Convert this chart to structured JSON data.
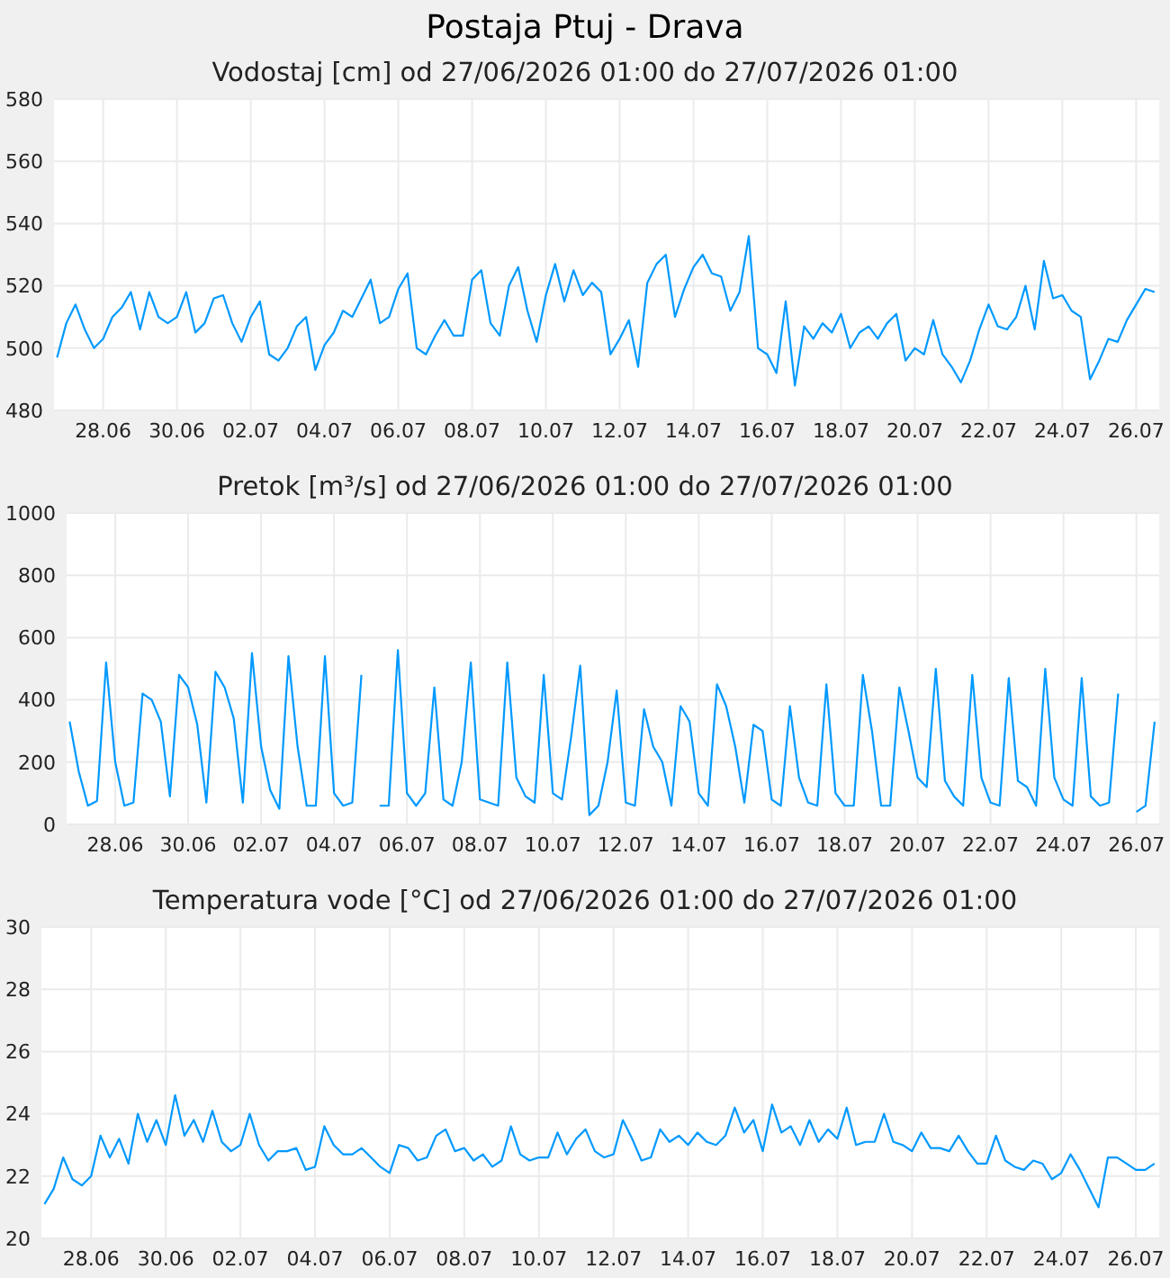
{
  "chart_data": [
    {
      "type": "line",
      "title": "Postaja Ptuj - Drava",
      "subtitle": "Vodostaj [cm] od 27/06/2026 01:00 do 27/07/2026 01:00",
      "grid": true,
      "x": [
        "2026-06-26T18:00",
        "2026-06-27T00:00",
        "2026-06-27T06:00",
        "2026-06-27T12:00",
        "2026-06-27T18:00",
        "2026-06-28T00:00",
        "2026-06-28T06:00",
        "2026-06-28T12:00",
        "2026-06-28T18:00",
        "2026-06-29T00:00",
        "2026-06-29T06:00",
        "2026-06-29T12:00",
        "2026-06-29T18:00",
        "2026-06-30T00:00",
        "2026-06-30T06:00",
        "2026-06-30T12:00",
        "2026-06-30T18:00",
        "2026-07-01T00:00",
        "2026-07-01T06:00",
        "2026-07-01T12:00",
        "2026-07-01T18:00",
        "2026-07-02T00:00",
        "2026-07-02T06:00",
        "2026-07-02T12:00",
        "2026-07-02T18:00",
        "2026-07-03T00:00",
        "2026-07-03T06:00",
        "2026-07-03T12:00",
        "2026-07-03T18:00",
        "2026-07-04T00:00",
        "2026-07-04T06:00",
        "2026-07-04T12:00",
        "2026-07-04T18:00",
        "2026-07-05T00:00",
        "2026-07-05T06:00",
        "2026-07-05T12:00",
        "2026-07-05T18:00",
        "2026-07-06T00:00",
        "2026-07-06T06:00",
        "2026-07-06T12:00",
        "2026-07-06T18:00",
        "2026-07-07T00:00",
        "2026-07-07T06:00",
        "2026-07-07T12:00",
        "2026-07-07T18:00",
        "2026-07-08T00:00",
        "2026-07-08T06:00",
        "2026-07-08T12:00",
        "2026-07-08T18:00",
        "2026-07-09T00:00",
        "2026-07-09T06:00",
        "2026-07-09T12:00",
        "2026-07-09T18:00",
        "2026-07-10T00:00",
        "2026-07-10T06:00",
        "2026-07-10T12:00",
        "2026-07-10T18:00",
        "2026-07-11T00:00",
        "2026-07-11T06:00",
        "2026-07-11T12:00",
        "2026-07-11T18:00",
        "2026-07-12T00:00",
        "2026-07-12T06:00",
        "2026-07-12T12:00",
        "2026-07-12T18:00",
        "2026-07-13T00:00",
        "2026-07-13T06:00",
        "2026-07-13T12:00",
        "2026-07-13T18:00",
        "2026-07-14T00:00",
        "2026-07-14T06:00",
        "2026-07-14T12:00",
        "2026-07-14T18:00",
        "2026-07-15T00:00",
        "2026-07-15T06:00",
        "2026-07-15T12:00",
        "2026-07-15T18:00",
        "2026-07-16T00:00",
        "2026-07-16T06:00",
        "2026-07-16T12:00",
        "2026-07-16T18:00",
        "2026-07-17T00:00",
        "2026-07-17T06:00",
        "2026-07-17T12:00",
        "2026-07-17T18:00",
        "2026-07-18T00:00",
        "2026-07-18T06:00",
        "2026-07-18T12:00",
        "2026-07-18T18:00",
        "2026-07-19T00:00",
        "2026-07-19T06:00",
        "2026-07-19T12:00",
        "2026-07-19T18:00",
        "2026-07-20T00:00",
        "2026-07-20T06:00",
        "2026-07-20T12:00",
        "2026-07-20T18:00",
        "2026-07-21T00:00",
        "2026-07-21T06:00",
        "2026-07-21T12:00",
        "2026-07-21T18:00",
        "2026-07-22T00:00",
        "2026-07-22T06:00",
        "2026-07-22T12:00",
        "2026-07-22T18:00",
        "2026-07-23T00:00",
        "2026-07-23T06:00",
        "2026-07-23T12:00",
        "2026-07-23T18:00",
        "2026-07-24T00:00",
        "2026-07-24T06:00",
        "2026-07-24T12:00",
        "2026-07-24T18:00",
        "2026-07-25T00:00",
        "2026-07-25T06:00",
        "2026-07-25T12:00",
        "2026-07-25T18:00",
        "2026-07-26T00:00",
        "2026-07-26T06:00",
        "2026-07-26T12:00"
      ],
      "series": [
        {
          "color": "#0099ff",
          "values": [
            497,
            508,
            514,
            506,
            500,
            503,
            510,
            513,
            518,
            506,
            518,
            510,
            508,
            510,
            518,
            505,
            508,
            516,
            517,
            508,
            502,
            510,
            515,
            498,
            496,
            500,
            507,
            510,
            493,
            501,
            505,
            512,
            510,
            516,
            522,
            508,
            510,
            519,
            524,
            500,
            498,
            504,
            509,
            504,
            504,
            522,
            525,
            508,
            504,
            520,
            526,
            512,
            502,
            517,
            527,
            515,
            525,
            517,
            521,
            518,
            498,
            503,
            509,
            494,
            521,
            527,
            530,
            510,
            519,
            526,
            530,
            524,
            523,
            512,
            518,
            536,
            500,
            498,
            492,
            515,
            488,
            507,
            503,
            508,
            505,
            511,
            500,
            505,
            507,
            503,
            508,
            511,
            496,
            500,
            498,
            509,
            498,
            494,
            489,
            496,
            506,
            514,
            507,
            506,
            510,
            520,
            506,
            528,
            516,
            517,
            512,
            510,
            490,
            496,
            503,
            502,
            509,
            514,
            519,
            518
          ]
        }
      ],
      "xlim": [
        "2026-06-26T16:00",
        "2026-07-26T15:00"
      ],
      "ylim": [
        480,
        580
      ],
      "yticks": [
        480,
        500,
        520,
        540,
        560,
        580
      ],
      "xticks": [
        {
          "value": "2026-06-28",
          "label": "28.06"
        },
        {
          "value": "2026-06-30",
          "label": "30.06"
        },
        {
          "value": "2026-07-02",
          "label": "02.07"
        },
        {
          "value": "2026-07-04",
          "label": "04.07"
        },
        {
          "value": "2026-07-06",
          "label": "06.07"
        },
        {
          "value": "2026-07-08",
          "label": "08.07"
        },
        {
          "value": "2026-07-10",
          "label": "10.07"
        },
        {
          "value": "2026-07-12",
          "label": "12.07"
        },
        {
          "value": "2026-07-14",
          "label": "14.07"
        },
        {
          "value": "2026-07-16",
          "label": "16.07"
        },
        {
          "value": "2026-07-18",
          "label": "18.07"
        },
        {
          "value": "2026-07-20",
          "label": "20.07"
        },
        {
          "value": "2026-07-22",
          "label": "22.07"
        },
        {
          "value": "2026-07-24",
          "label": "24.07"
        },
        {
          "value": "2026-07-26",
          "label": "26.07"
        }
      ]
    },
    {
      "type": "line",
      "title": "Pretok [m³/s] od 27/06/2026 01:00 do 27/07/2026 01:00",
      "grid": true,
      "x": [
        "2026-06-26T18:00",
        "2026-06-27T00:00",
        "2026-06-27T06:00",
        "2026-06-27T12:00",
        "2026-06-27T18:00",
        "2026-06-28T00:00",
        "2026-06-28T06:00",
        "2026-06-28T12:00",
        "2026-06-28T18:00",
        "2026-06-29T00:00",
        "2026-06-29T06:00",
        "2026-06-29T12:00",
        "2026-06-29T18:00",
        "2026-06-30T00:00",
        "2026-06-30T06:00",
        "2026-06-30T12:00",
        "2026-06-30T18:00",
        "2026-07-01T00:00",
        "2026-07-01T06:00",
        "2026-07-01T12:00",
        "2026-07-01T18:00",
        "2026-07-02T00:00",
        "2026-07-02T06:00",
        "2026-07-02T12:00",
        "2026-07-02T18:00",
        "2026-07-03T00:00",
        "2026-07-03T06:00",
        "2026-07-03T12:00",
        "2026-07-03T18:00",
        "2026-07-04T00:00",
        "2026-07-04T06:00",
        "2026-07-04T12:00",
        "2026-07-04T18:00",
        "2026-07-05T00:00",
        "2026-07-05T06:00",
        "2026-07-05T12:00",
        "2026-07-05T18:00",
        "2026-07-06T00:00",
        "2026-07-06T06:00",
        "2026-07-06T12:00",
        "2026-07-06T18:00",
        "2026-07-07T00:00",
        "2026-07-07T06:00",
        "2026-07-07T12:00",
        "2026-07-07T18:00",
        "2026-07-08T00:00",
        "2026-07-08T06:00",
        "2026-07-08T12:00",
        "2026-07-08T18:00",
        "2026-07-09T00:00",
        "2026-07-09T06:00",
        "2026-07-09T12:00",
        "2026-07-09T18:00",
        "2026-07-10T00:00",
        "2026-07-10T06:00",
        "2026-07-10T12:00",
        "2026-07-10T18:00",
        "2026-07-11T00:00",
        "2026-07-11T06:00",
        "2026-07-11T12:00",
        "2026-07-11T18:00",
        "2026-07-12T00:00",
        "2026-07-12T06:00",
        "2026-07-12T12:00",
        "2026-07-12T18:00",
        "2026-07-13T00:00",
        "2026-07-13T06:00",
        "2026-07-13T12:00",
        "2026-07-13T18:00",
        "2026-07-14T00:00",
        "2026-07-14T06:00",
        "2026-07-14T12:00",
        "2026-07-14T18:00",
        "2026-07-15T00:00",
        "2026-07-15T06:00",
        "2026-07-15T12:00",
        "2026-07-15T18:00",
        "2026-07-16T00:00",
        "2026-07-16T06:00",
        "2026-07-16T12:00",
        "2026-07-16T18:00",
        "2026-07-17T00:00",
        "2026-07-17T06:00",
        "2026-07-17T12:00",
        "2026-07-17T18:00",
        "2026-07-18T00:00",
        "2026-07-18T06:00",
        "2026-07-18T12:00",
        "2026-07-18T18:00",
        "2026-07-19T00:00",
        "2026-07-19T06:00",
        "2026-07-19T12:00",
        "2026-07-19T18:00",
        "2026-07-20T00:00",
        "2026-07-20T06:00",
        "2026-07-20T12:00",
        "2026-07-20T18:00",
        "2026-07-21T00:00",
        "2026-07-21T06:00",
        "2026-07-21T12:00",
        "2026-07-21T18:00",
        "2026-07-22T00:00",
        "2026-07-22T06:00",
        "2026-07-22T12:00",
        "2026-07-22T18:00",
        "2026-07-23T00:00",
        "2026-07-23T06:00",
        "2026-07-23T12:00",
        "2026-07-23T18:00",
        "2026-07-24T00:00",
        "2026-07-24T06:00",
        "2026-07-24T12:00",
        "2026-07-24T18:00",
        "2026-07-25T00:00",
        "2026-07-25T06:00",
        "2026-07-25T12:00",
        "2026-07-25T18:00",
        "2026-07-26T00:00",
        "2026-07-26T06:00",
        "2026-07-26T12:00"
      ],
      "series": [
        {
          "color": "#0099ff",
          "values": [
            330,
            170,
            60,
            75,
            520,
            200,
            60,
            70,
            420,
            400,
            330,
            90,
            480,
            440,
            320,
            70,
            490,
            440,
            340,
            70,
            550,
            250,
            110,
            50,
            540,
            250,
            60,
            60,
            540,
            100,
            60,
            70,
            480,
            null,
            60,
            60,
            560,
            100,
            60,
            100,
            440,
            80,
            60,
            200,
            520,
            80,
            70,
            60,
            520,
            150,
            90,
            70,
            480,
            100,
            80,
            280,
            510,
            30,
            60,
            200,
            430,
            70,
            60,
            370,
            250,
            200,
            60,
            380,
            330,
            100,
            60,
            450,
            380,
            250,
            70,
            320,
            300,
            80,
            60,
            380,
            150,
            70,
            60,
            450,
            100,
            60,
            60,
            480,
            300,
            60,
            60,
            440,
            300,
            150,
            120,
            500,
            140,
            90,
            60,
            480,
            150,
            70,
            60,
            470,
            140,
            120,
            60,
            500,
            150,
            80,
            60,
            470,
            90,
            60,
            70,
            420,
            null,
            40,
            60,
            330
          ]
        }
      ],
      "xlim": [
        "2026-06-26T16:00",
        "2026-07-26T15:00"
      ],
      "ylim": [
        0,
        1000
      ],
      "yticks": [
        0,
        200,
        400,
        600,
        800,
        1000
      ],
      "xticks": [
        {
          "value": "2026-06-28",
          "label": "28.06"
        },
        {
          "value": "2026-06-30",
          "label": "30.06"
        },
        {
          "value": "2026-07-02",
          "label": "02.07"
        },
        {
          "value": "2026-07-04",
          "label": "04.07"
        },
        {
          "value": "2026-07-06",
          "label": "06.07"
        },
        {
          "value": "2026-07-08",
          "label": "08.07"
        },
        {
          "value": "2026-07-10",
          "label": "10.07"
        },
        {
          "value": "2026-07-12",
          "label": "12.07"
        },
        {
          "value": "2026-07-14",
          "label": "14.07"
        },
        {
          "value": "2026-07-16",
          "label": "16.07"
        },
        {
          "value": "2026-07-18",
          "label": "18.07"
        },
        {
          "value": "2026-07-20",
          "label": "20.07"
        },
        {
          "value": "2026-07-22",
          "label": "22.07"
        },
        {
          "value": "2026-07-24",
          "label": "24.07"
        },
        {
          "value": "2026-07-26",
          "label": "26.07"
        }
      ]
    },
    {
      "type": "line",
      "title": "Temperatura vode [°C] od 27/06/2026 01:00 do 27/07/2026 01:00",
      "grid": true,
      "x": [
        "2026-06-26T18:00",
        "2026-06-27T00:00",
        "2026-06-27T06:00",
        "2026-06-27T12:00",
        "2026-06-27T18:00",
        "2026-06-28T00:00",
        "2026-06-28T06:00",
        "2026-06-28T12:00",
        "2026-06-28T18:00",
        "2026-06-29T00:00",
        "2026-06-29T06:00",
        "2026-06-29T12:00",
        "2026-06-29T18:00",
        "2026-06-30T00:00",
        "2026-06-30T06:00",
        "2026-06-30T12:00",
        "2026-06-30T18:00",
        "2026-07-01T00:00",
        "2026-07-01T06:00",
        "2026-07-01T12:00",
        "2026-07-01T18:00",
        "2026-07-02T00:00",
        "2026-07-02T06:00",
        "2026-07-02T12:00",
        "2026-07-02T18:00",
        "2026-07-03T00:00",
        "2026-07-03T06:00",
        "2026-07-03T12:00",
        "2026-07-03T18:00",
        "2026-07-04T00:00",
        "2026-07-04T06:00",
        "2026-07-04T12:00",
        "2026-07-04T18:00",
        "2026-07-05T00:00",
        "2026-07-05T06:00",
        "2026-07-05T12:00",
        "2026-07-05T18:00",
        "2026-07-06T00:00",
        "2026-07-06T06:00",
        "2026-07-06T12:00",
        "2026-07-06T18:00",
        "2026-07-07T00:00",
        "2026-07-07T06:00",
        "2026-07-07T12:00",
        "2026-07-07T18:00",
        "2026-07-08T00:00",
        "2026-07-08T06:00",
        "2026-07-08T12:00",
        "2026-07-08T18:00",
        "2026-07-09T00:00",
        "2026-07-09T06:00",
        "2026-07-09T12:00",
        "2026-07-09T18:00",
        "2026-07-10T00:00",
        "2026-07-10T06:00",
        "2026-07-10T12:00",
        "2026-07-10T18:00",
        "2026-07-11T00:00",
        "2026-07-11T06:00",
        "2026-07-11T12:00",
        "2026-07-11T18:00",
        "2026-07-12T00:00",
        "2026-07-12T06:00",
        "2026-07-12T12:00",
        "2026-07-12T18:00",
        "2026-07-13T00:00",
        "2026-07-13T06:00",
        "2026-07-13T12:00",
        "2026-07-13T18:00",
        "2026-07-14T00:00",
        "2026-07-14T06:00",
        "2026-07-14T12:00",
        "2026-07-14T18:00",
        "2026-07-15T00:00",
        "2026-07-15T06:00",
        "2026-07-15T12:00",
        "2026-07-15T18:00",
        "2026-07-16T00:00",
        "2026-07-16T06:00",
        "2026-07-16T12:00",
        "2026-07-16T18:00",
        "2026-07-17T00:00",
        "2026-07-17T06:00",
        "2026-07-17T12:00",
        "2026-07-17T18:00",
        "2026-07-18T00:00",
        "2026-07-18T06:00",
        "2026-07-18T12:00",
        "2026-07-18T18:00",
        "2026-07-19T00:00",
        "2026-07-19T06:00",
        "2026-07-19T12:00",
        "2026-07-19T18:00",
        "2026-07-20T00:00",
        "2026-07-20T06:00",
        "2026-07-20T12:00",
        "2026-07-20T18:00",
        "2026-07-21T00:00",
        "2026-07-21T06:00",
        "2026-07-21T12:00",
        "2026-07-21T18:00",
        "2026-07-22T00:00",
        "2026-07-22T06:00",
        "2026-07-22T12:00",
        "2026-07-22T18:00",
        "2026-07-23T00:00",
        "2026-07-23T06:00",
        "2026-07-23T12:00",
        "2026-07-23T18:00",
        "2026-07-24T00:00",
        "2026-07-24T06:00",
        "2026-07-24T12:00",
        "2026-07-24T18:00",
        "2026-07-25T00:00",
        "2026-07-25T06:00",
        "2026-07-25T12:00",
        "2026-07-25T18:00",
        "2026-07-26T00:00",
        "2026-07-26T06:00",
        "2026-07-26T12:00"
      ],
      "series": [
        {
          "color": "#0099ff",
          "values": [
            21.1,
            21.6,
            22.6,
            21.9,
            21.7,
            22.0,
            23.3,
            22.6,
            23.2,
            22.4,
            24.0,
            23.1,
            23.8,
            23.0,
            24.6,
            23.3,
            23.8,
            23.1,
            24.1,
            23.1,
            22.8,
            23.0,
            24.0,
            23.0,
            22.5,
            22.8,
            22.8,
            22.9,
            22.2,
            22.3,
            23.6,
            23.0,
            22.7,
            22.7,
            22.9,
            22.6,
            22.3,
            22.1,
            23.0,
            22.9,
            22.5,
            22.6,
            23.3,
            23.5,
            22.8,
            22.9,
            22.5,
            22.7,
            22.3,
            22.5,
            23.6,
            22.7,
            22.5,
            22.6,
            22.6,
            23.4,
            22.7,
            23.2,
            23.5,
            22.8,
            22.6,
            22.7,
            23.8,
            23.2,
            22.5,
            22.6,
            23.5,
            23.1,
            23.3,
            23.0,
            23.4,
            23.1,
            23.0,
            23.3,
            24.2,
            23.4,
            23.8,
            22.8,
            24.3,
            23.4,
            23.6,
            23.0,
            23.8,
            23.1,
            23.5,
            23.2,
            24.2,
            23.0,
            23.1,
            23.1,
            24.0,
            23.1,
            23.0,
            22.8,
            23.4,
            22.9,
            22.9,
            22.8,
            23.3,
            22.8,
            22.4,
            22.4,
            23.3,
            22.5,
            22.3,
            22.2,
            22.5,
            22.4,
            21.9,
            22.1,
            22.7,
            22.2,
            21.6,
            21.0,
            22.6,
            22.6,
            22.4,
            22.2,
            22.2,
            22.4
          ]
        }
      ],
      "xlim": [
        "2026-06-26T16:00",
        "2026-07-26T15:00"
      ],
      "ylim": [
        20,
        30
      ],
      "yticks": [
        20,
        22,
        24,
        26,
        28,
        30
      ],
      "xticks": [
        {
          "value": "2026-06-28",
          "label": "28.06"
        },
        {
          "value": "2026-06-30",
          "label": "30.06"
        },
        {
          "value": "2026-07-02",
          "label": "02.07"
        },
        {
          "value": "2026-07-04",
          "label": "04.07"
        },
        {
          "value": "2026-07-06",
          "label": "06.07"
        },
        {
          "value": "2026-07-08",
          "label": "08.07"
        },
        {
          "value": "2026-07-10",
          "label": "10.07"
        },
        {
          "value": "2026-07-12",
          "label": "12.07"
        },
        {
          "value": "2026-07-14",
          "label": "14.07"
        },
        {
          "value": "2026-07-16",
          "label": "16.07"
        },
        {
          "value": "2026-07-18",
          "label": "18.07"
        },
        {
          "value": "2026-07-20",
          "label": "20.07"
        },
        {
          "value": "2026-07-22",
          "label": "22.07"
        },
        {
          "value": "2026-07-24",
          "label": "24.07"
        },
        {
          "value": "2026-07-26",
          "label": "26.07"
        }
      ]
    }
  ]
}
